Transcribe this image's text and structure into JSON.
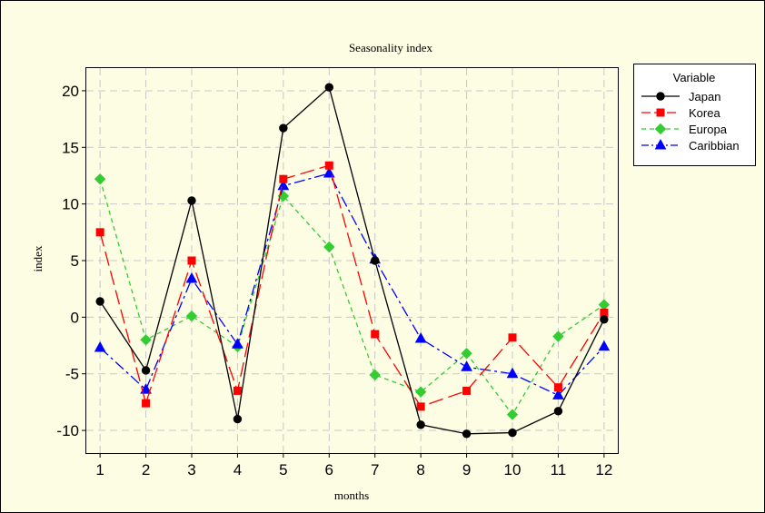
{
  "chart_data": {
    "type": "line",
    "title": "Seasonality index",
    "xlabel": "months",
    "ylabel": "index",
    "categories": [
      "1",
      "2",
      "3",
      "4",
      "5",
      "6",
      "7",
      "8",
      "9",
      "10",
      "11",
      "12"
    ],
    "x": [
      1,
      2,
      3,
      4,
      5,
      6,
      7,
      8,
      9,
      10,
      11,
      12
    ],
    "xlim": [
      0.7,
      12.3
    ],
    "ylim": [
      -12,
      22
    ],
    "yticks": [
      -10,
      -5,
      0,
      5,
      10,
      15,
      20
    ],
    "ytick_labels": [
      "-10",
      "-5",
      "0",
      "5",
      "10",
      "15",
      "20"
    ],
    "grid": true,
    "legend_title": "Variable",
    "legend_position": "right",
    "series": [
      {
        "name": "Japan",
        "color": "#000000",
        "marker": "circle",
        "line_style": "solid",
        "values": [
          1.4,
          -4.7,
          10.3,
          -9.0,
          16.7,
          20.3,
          5.0,
          -9.5,
          -10.3,
          -10.2,
          -8.3,
          -0.2
        ]
      },
      {
        "name": "Korea",
        "color": "#ff0000",
        "marker": "square",
        "line_style": "long-dash",
        "values": [
          7.5,
          -7.6,
          5.0,
          -6.5,
          12.2,
          13.4,
          -1.5,
          -7.9,
          -6.5,
          -1.8,
          -6.2,
          0.4
        ]
      },
      {
        "name": "Europa",
        "color": "#33cc33",
        "marker": "diamond",
        "line_style": "short-dash",
        "values": [
          12.2,
          -2.0,
          0.1,
          -2.6,
          10.7,
          6.2,
          -5.1,
          -6.6,
          -3.2,
          -8.6,
          -1.7,
          1.1
        ]
      },
      {
        "name": "Caribbian",
        "color": "#0000ff",
        "marker": "triangle",
        "line_style": "dash-dot",
        "values": [
          -2.7,
          -6.4,
          3.4,
          -2.4,
          11.6,
          12.7,
          5.1,
          -1.9,
          -4.4,
          -5.0,
          -6.9,
          -2.6
        ]
      }
    ]
  }
}
